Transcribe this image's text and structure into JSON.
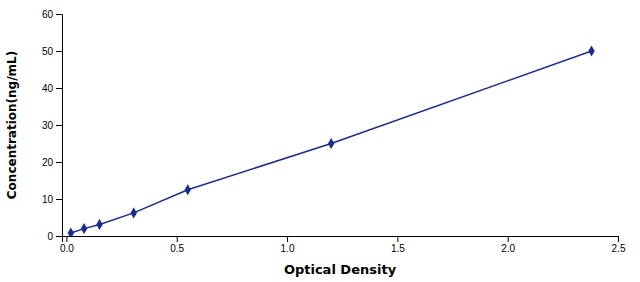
{
  "chart_data": {
    "type": "line",
    "x": [
      0.02,
      0.08,
      0.15,
      0.305,
      0.55,
      1.2,
      2.38
    ],
    "values": [
      0.8,
      2.0,
      3.13,
      6.25,
      12.5,
      25.0,
      50.0
    ],
    "color": "#1B2D8A",
    "marker": "diamond",
    "line_style": "solid",
    "xlabel": "Optical Density",
    "ylabel": "Concentration(ng/mL)",
    "xlim": [
      -0.02,
      2.5
    ],
    "ylim": [
      0,
      60
    ],
    "xticks": [
      {
        "value": 0,
        "label": "0.0"
      },
      0.5,
      {
        "value": 1,
        "label": "1.0"
      },
      1.5,
      {
        "value": 2,
        "label": "2.0"
      },
      2.5
    ],
    "yticks": [
      0,
      10,
      20,
      30,
      40,
      50,
      60
    ],
    "grid": false
  }
}
